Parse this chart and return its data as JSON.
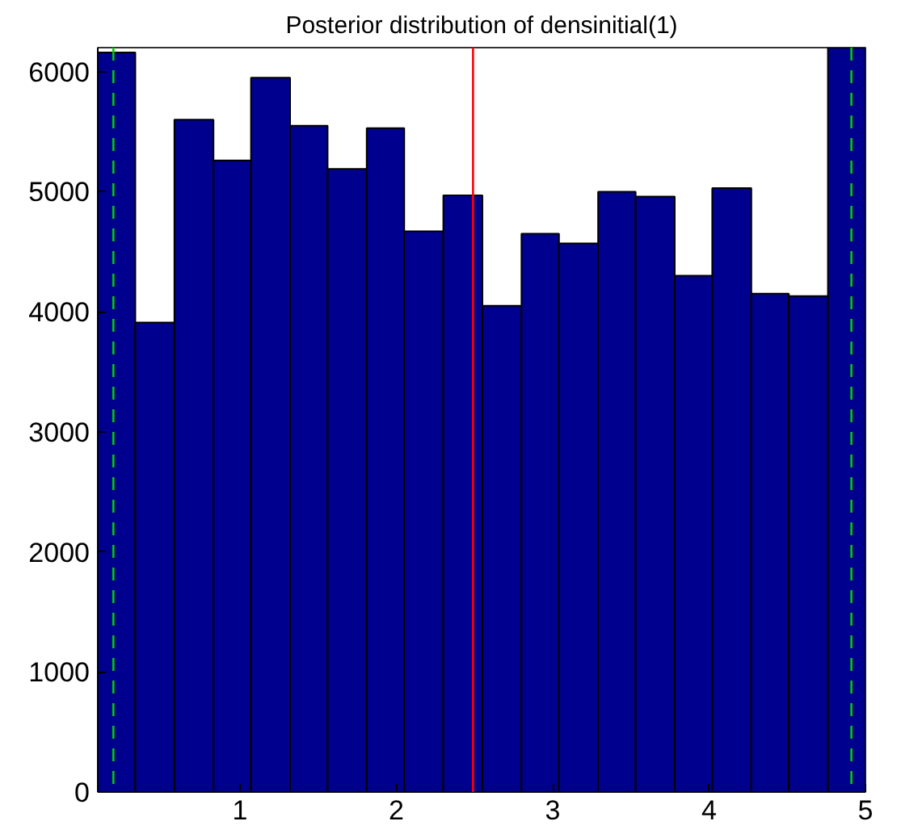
{
  "chart_data": {
    "type": "histogram",
    "title": "Posterior distribution of densinitial(1)",
    "bins": [
      0.09,
      0.33,
      0.58,
      0.83,
      1.07,
      1.32,
      1.56,
      1.81,
      2.05,
      2.3,
      2.55,
      2.8,
      3.04,
      3.29,
      3.53,
      3.78,
      4.02,
      4.27,
      4.51,
      4.76,
      5.0
    ],
    "values": [
      6160,
      3910,
      5600,
      5260,
      5950,
      5550,
      5190,
      5530,
      4670,
      4970,
      4050,
      4650,
      4570,
      5000,
      4960,
      4300,
      5030,
      4150,
      4130,
      6200
    ],
    "color": "#00008f",
    "xlim": [
      0.09,
      5.0
    ],
    "ylim": [
      0,
      6200
    ],
    "xticks": [
      1,
      2,
      3,
      4,
      5
    ],
    "yticks": [
      0,
      1000,
      2000,
      3000,
      4000,
      5000,
      6000
    ],
    "grid": false,
    "ref_lines": [
      {
        "axis": "x",
        "value": 0.19,
        "color": "#00cc00",
        "line_style": "dashed"
      },
      {
        "axis": "x",
        "value": 2.49,
        "color": "#ff0000",
        "line_style": "solid"
      },
      {
        "axis": "x",
        "value": 4.91,
        "color": "#00cc00",
        "line_style": "dashed"
      }
    ]
  }
}
